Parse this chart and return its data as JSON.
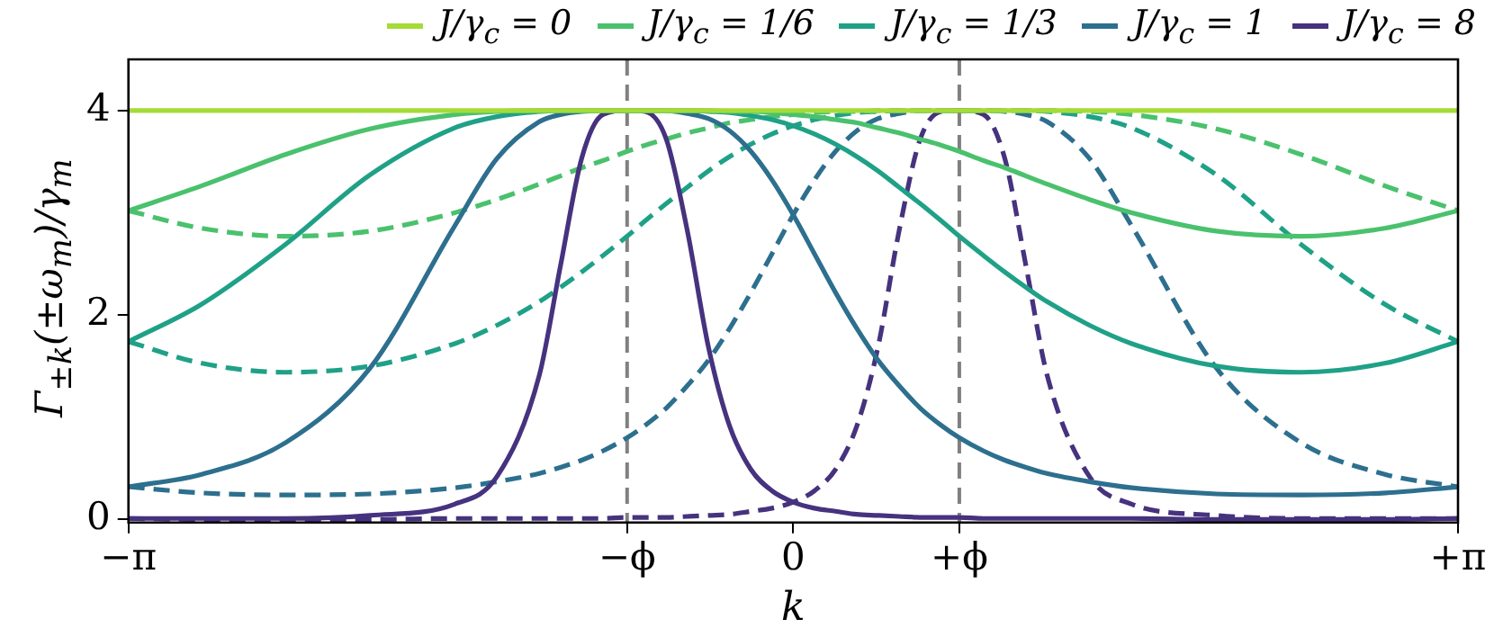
{
  "chart_data": {
    "type": "line",
    "xlabel": "k",
    "ylabel": "Γ$_{±k}$(±ω$_{m}$)/γ$_{m}$",
    "x": [
      -3.1416,
      -2.8,
      -2.4,
      -2,
      -1.6,
      -1.4,
      -1.2,
      -1.1,
      -1,
      -0.9,
      -0.785,
      -0.7,
      -0.6,
      -0.5,
      -0.4,
      -0.3,
      -0.2,
      -0.1,
      0,
      0.1,
      0.2,
      0.3,
      0.4,
      0.5,
      0.6,
      0.7,
      0.785,
      0.9,
      1,
      1.1,
      1.2,
      1.4,
      1.6,
      2,
      2.4,
      2.8,
      3.1416
    ],
    "xlim": [
      -3.1416,
      3.1416
    ],
    "xticks": [
      {
        "value": -3.1416,
        "label": "−π"
      },
      {
        "value": -0.785,
        "label": "−ϕ"
      },
      0,
      {
        "value": 0.785,
        "label": "+ϕ"
      },
      {
        "value": 3.1416,
        "label": "+π"
      }
    ],
    "ylim": [
      -0.03,
      4.5
    ],
    "yticks": [
      0,
      2,
      4
    ],
    "grid": false,
    "legend": "top",
    "marker": "none",
    "ref_lines": [
      {
        "axis": "x",
        "value": -0.785,
        "color": "#808080",
        "line_style": "dashed"
      },
      {
        "axis": "x",
        "value": 0.785,
        "color": "#808080",
        "line_style": "dashed"
      }
    ],
    "series": [
      {
        "name": "J/γ$_{c}$ = 0",
        "color": "#a5db36",
        "x": [
          -3.1416,
          3.1416
        ],
        "values": [
          4,
          4
        ],
        "line_style": "solid"
      },
      {
        "name": "J/γ$_{c}$ = 1/6",
        "color": "#4ac16d",
        "line_style": "solid",
        "values": [
          3.02,
          3.26,
          3.57,
          3.82,
          3.96,
          3.99,
          4.0,
          4.0,
          4.0,
          4.0,
          4.0,
          4.0,
          4.0,
          4.0,
          4.0,
          3.99,
          3.99,
          3.98,
          3.96,
          3.94,
          3.91,
          3.88,
          3.83,
          3.78,
          3.72,
          3.66,
          3.6,
          3.51,
          3.44,
          3.36,
          3.28,
          3.13,
          3.0,
          2.82,
          2.77,
          2.85,
          3.02
        ]
      },
      {
        "name": "J/γ$_{c}$ = 1/3",
        "color": "#1fa187",
        "line_style": "solid",
        "values": [
          1.74,
          2.1,
          2.69,
          3.37,
          3.83,
          3.94,
          3.99,
          4.0,
          4.0,
          4.0,
          4.0,
          4.0,
          4.0,
          4.0,
          3.99,
          3.98,
          3.95,
          3.91,
          3.85,
          3.77,
          3.67,
          3.55,
          3.41,
          3.25,
          3.09,
          2.92,
          2.77,
          2.58,
          2.42,
          2.27,
          2.13,
          1.9,
          1.72,
          1.5,
          1.44,
          1.53,
          1.74
        ]
      },
      {
        "name": "J/γ$_{c}$ = 1",
        "color": "#2d6f8e",
        "line_style": "solid",
        "values": [
          0.32,
          0.44,
          0.75,
          1.48,
          2.87,
          3.53,
          3.89,
          3.96,
          3.99,
          4.0,
          4.0,
          4.0,
          4.0,
          3.97,
          3.92,
          3.8,
          3.6,
          3.32,
          2.98,
          2.6,
          2.22,
          1.87,
          1.56,
          1.31,
          1.09,
          0.92,
          0.8,
          0.67,
          0.58,
          0.51,
          0.45,
          0.37,
          0.31,
          0.25,
          0.24,
          0.26,
          0.32
        ]
      },
      {
        "name": "J/γ$_{c}$ = 8",
        "color": "#46327e",
        "line_style": "solid",
        "values": [
          0.01,
          0.01,
          0.01,
          0.04,
          0.15,
          0.42,
          1.41,
          2.48,
          3.53,
          3.96,
          4.0,
          3.99,
          3.72,
          2.82,
          1.68,
          0.91,
          0.49,
          0.28,
          0.17,
          0.11,
          0.08,
          0.05,
          0.04,
          0.03,
          0.02,
          0.02,
          0.02,
          0.01,
          0.01,
          0.01,
          0.01,
          0.01,
          0.01,
          0.0,
          0.0,
          0.0,
          0.01
        ]
      },
      {
        "color": "#4ac16d",
        "line_style": "dashed",
        "values": [
          3.02,
          2.85,
          2.77,
          2.82,
          3.0,
          3.13,
          3.28,
          3.36,
          3.44,
          3.51,
          3.6,
          3.66,
          3.72,
          3.78,
          3.83,
          3.88,
          3.91,
          3.94,
          3.96,
          3.98,
          3.99,
          3.99,
          4.0,
          4.0,
          4.0,
          4.0,
          4.0,
          4.0,
          4.0,
          4.0,
          4.0,
          3.99,
          3.96,
          3.82,
          3.57,
          3.26,
          3.02
        ]
      },
      {
        "color": "#1fa187",
        "line_style": "dashed",
        "values": [
          1.74,
          1.53,
          1.44,
          1.5,
          1.72,
          1.9,
          2.13,
          2.27,
          2.42,
          2.58,
          2.77,
          2.92,
          3.09,
          3.25,
          3.41,
          3.55,
          3.67,
          3.77,
          3.85,
          3.91,
          3.95,
          3.98,
          3.99,
          4.0,
          4.0,
          4.0,
          4.0,
          4.0,
          4.0,
          4.0,
          3.99,
          3.94,
          3.83,
          3.37,
          2.69,
          2.1,
          1.74
        ]
      },
      {
        "color": "#2d6f8e",
        "line_style": "dashed",
        "values": [
          0.32,
          0.26,
          0.24,
          0.25,
          0.31,
          0.37,
          0.45,
          0.51,
          0.58,
          0.67,
          0.8,
          0.92,
          1.09,
          1.31,
          1.56,
          1.87,
          2.22,
          2.6,
          2.98,
          3.32,
          3.6,
          3.8,
          3.92,
          3.97,
          4.0,
          4.0,
          4.0,
          4.0,
          3.99,
          3.96,
          3.89,
          3.53,
          2.87,
          1.48,
          0.75,
          0.44,
          0.32
        ]
      },
      {
        "color": "#46327e",
        "line_style": "dashed",
        "values": [
          0.01,
          0.0,
          0.0,
          0.0,
          0.01,
          0.01,
          0.01,
          0.01,
          0.01,
          0.01,
          0.02,
          0.02,
          0.02,
          0.03,
          0.04,
          0.05,
          0.08,
          0.11,
          0.17,
          0.28,
          0.49,
          0.91,
          1.68,
          2.82,
          3.72,
          3.99,
          4.0,
          3.96,
          3.53,
          2.48,
          1.41,
          0.42,
          0.15,
          0.04,
          0.01,
          0.01,
          0.01
        ]
      }
    ]
  }
}
